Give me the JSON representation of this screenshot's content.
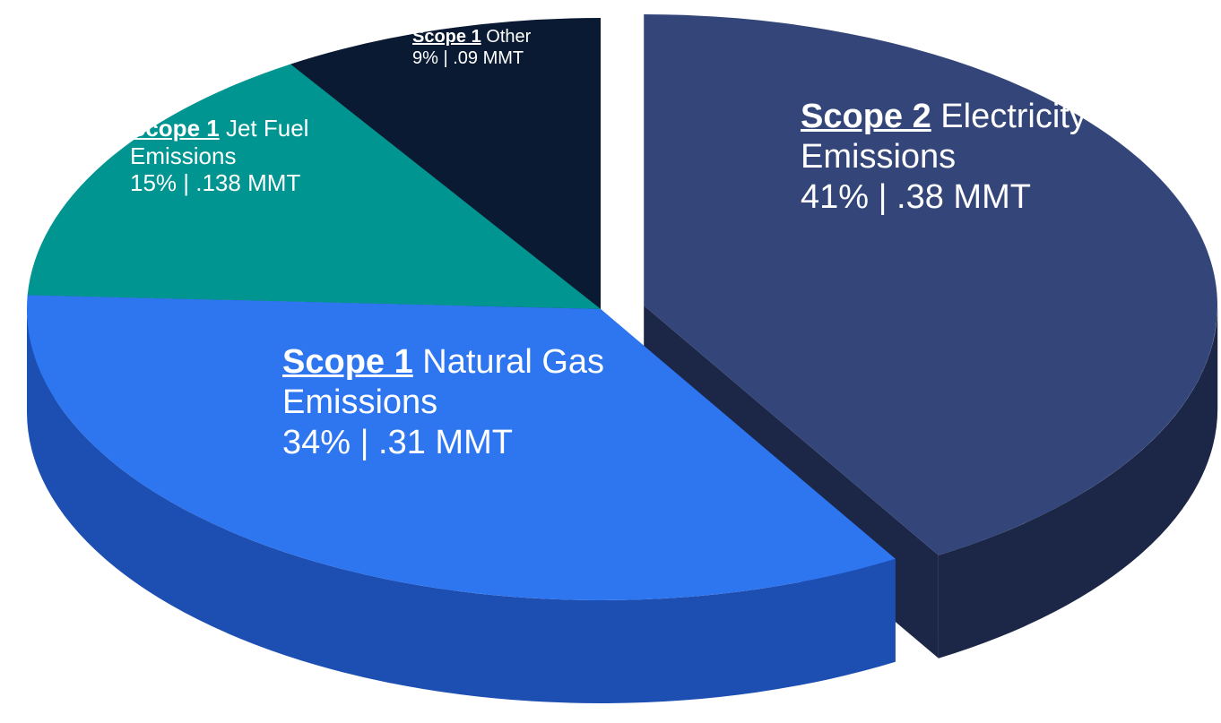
{
  "chart_data": {
    "type": "pie3d",
    "scopes": [
      "Scope 2",
      "Scope 1",
      "Scope 1",
      "Scope 1"
    ],
    "categories": [
      "Electricity Emissions",
      "Natural Gas Emissions",
      "Jet Fuel Emissions",
      "Other"
    ],
    "values": [
      41,
      34,
      15,
      9
    ],
    "value_labels": [
      "41% | .38 MMT",
      "34% | .31 MMT",
      "15% | .138 MMT",
      "9% | .09 MMT"
    ],
    "colors": [
      "#34457a",
      "#2e75f0",
      "#009590",
      "#0b1a33"
    ],
    "side_colors": [
      "#1c2646",
      "#1d4fb3",
      "#003f3b",
      "#050c18"
    ],
    "explode": [
      1,
      0,
      0,
      0
    ]
  }
}
